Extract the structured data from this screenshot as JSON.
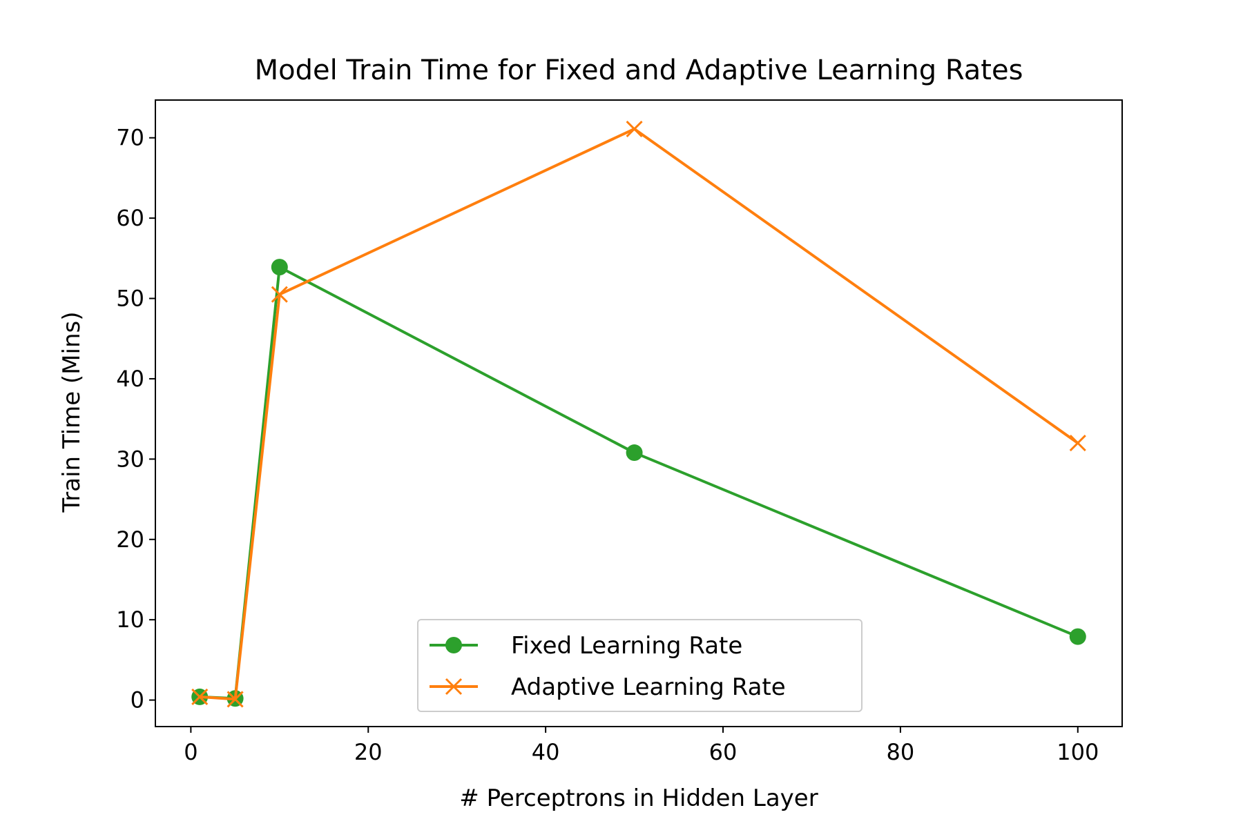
{
  "chart_data": {
    "type": "line",
    "title": "Model Train Time for Fixed and Adaptive Learning Rates",
    "xlabel": "# Perceptrons in Hidden Layer",
    "ylabel": "Train Time (Mins)",
    "xlim": [
      -4,
      105
    ],
    "ylim": [
      -3.3,
      74.7
    ],
    "xticks": [
      0,
      20,
      40,
      60,
      80,
      100
    ],
    "yticks": [
      0,
      10,
      20,
      30,
      40,
      50,
      60,
      70
    ],
    "xtick_labels": [
      "0",
      "20",
      "40",
      "60",
      "80",
      "100"
    ],
    "ytick_labels": [
      "0",
      "10",
      "20",
      "30",
      "40",
      "50",
      "60",
      "70"
    ],
    "grid": false,
    "legend_position": "lower-center",
    "series": [
      {
        "name": "Fixed Learning Rate",
        "color": "#2ca02c",
        "marker": "circle",
        "x": [
          1,
          5,
          10,
          50,
          100
        ],
        "y": [
          0.4,
          0.2,
          53.9,
          30.8,
          7.9
        ]
      },
      {
        "name": "Adaptive Learning Rate",
        "color": "#ff7f0e",
        "marker": "x",
        "x": [
          1,
          5,
          10,
          50,
          100
        ],
        "y": [
          0.4,
          0.1,
          50.5,
          71.1,
          32.0
        ]
      }
    ]
  }
}
